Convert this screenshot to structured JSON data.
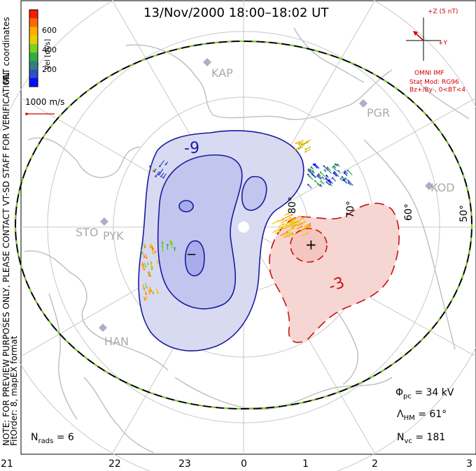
{
  "title": "13/Nov/2000 18:00–18:02 UT",
  "colorbar": {
    "title": "Vel [m/s]",
    "ticks": [
      "600",
      "400",
      "200"
    ],
    "colors": [
      "#ff1a00",
      "#ff6a00",
      "#ffb000",
      "#e8d000",
      "#80d020",
      "#30b040",
      "#308080",
      "#3050c0",
      "#0010ff"
    ]
  },
  "coord_label": "MLT coordinates",
  "scale_vector_label": "1000 m/s",
  "note": "NOTE: FOR PREVIEW PURPOSES ONLY, PLEASE CONTACT VT-SD STAFF FOR VERIFICATION.",
  "fit_order": "FitOrder: 8, mapEX format",
  "imf": {
    "z_label": "+Z (5 nT)",
    "y_label": "+Y",
    "source": "OMNI IMF",
    "stat_mod": "Stat Mod: RG96",
    "condition": "Bz+/By-, 0<BT<4"
  },
  "stations": [
    "KAP",
    "PGR",
    "KOD",
    "STO",
    "PYK",
    "HAN"
  ],
  "lat_labels": [
    "80°",
    "70°",
    "60°",
    "50°"
  ],
  "contour_labels": [
    "-9",
    "-3"
  ],
  "extrema": {
    "min": "−",
    "max": "+"
  },
  "stats": {
    "phi_symbol": "Φ",
    "phi_sub": "pc",
    "phi_value": "= 34 kV",
    "lambda_symbol": "Λ",
    "lambda_sub": "HM",
    "lambda_value": "= 61°",
    "n_symbol": "N",
    "n_sub": "vc",
    "n_value": "= 181",
    "nrads_symbol": "N",
    "nrads_sub": "rads",
    "nrads_value": "= 6"
  },
  "mlt_ticks": [
    "21",
    "22",
    "23",
    "0",
    "1",
    "2",
    "3"
  ],
  "colors": {
    "frame": "#000000",
    "grid": "#c8c8c8",
    "land": "#bdbdbd",
    "neg_fill": "#d8daf2",
    "neg_inner": "#a8acea",
    "neg_line": "#1a1aa0",
    "pos_fill": "#f6d6d2",
    "pos_line": "#cc1010",
    "hmb": "#000000",
    "hmb_dash": "#7ad020",
    "annotation": "#d00000"
  }
}
